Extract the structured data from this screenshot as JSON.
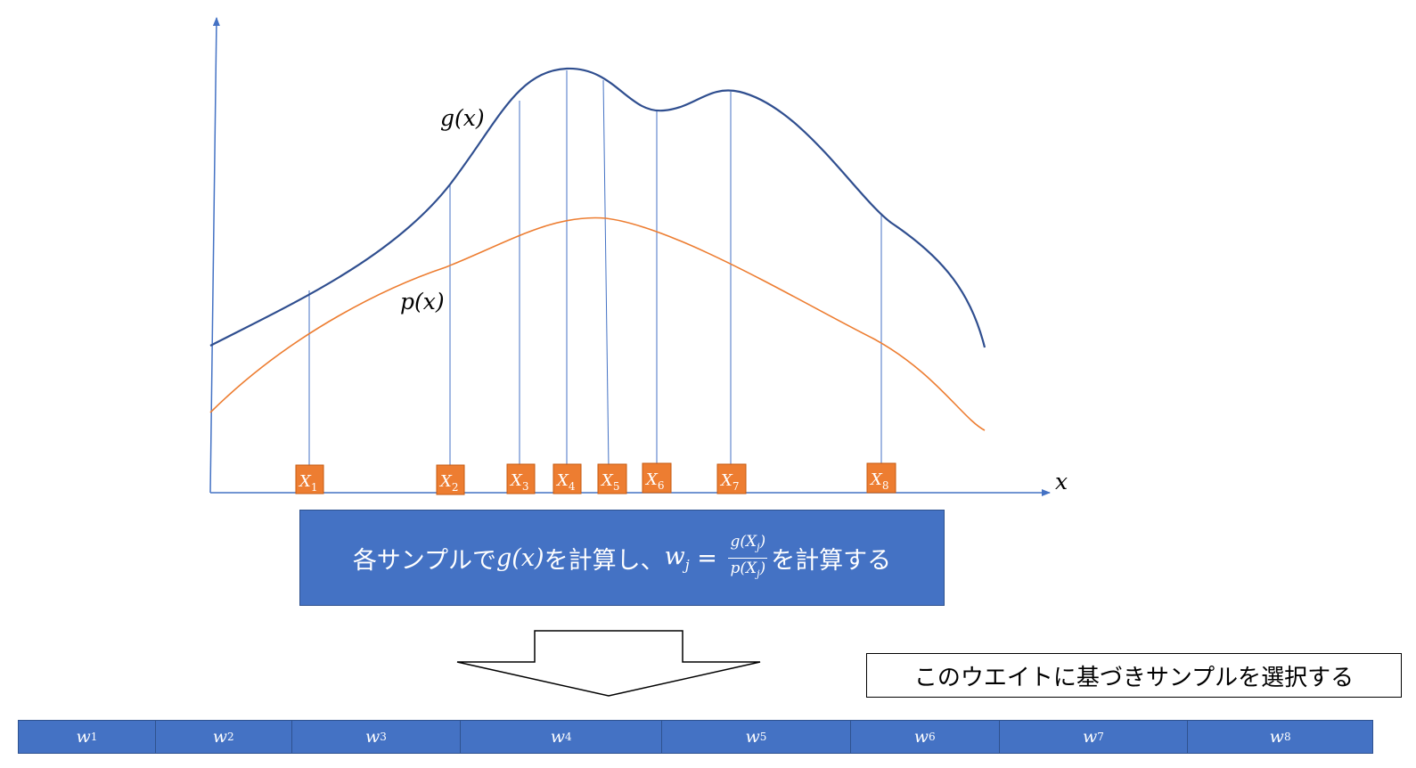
{
  "curves": {
    "g_label": "g(x)",
    "p_label": "p(x)",
    "g_color": "#2f4e8f",
    "p_color": "#ed7d31",
    "guide_color": "#4472c4"
  },
  "axes": {
    "x_label": "x",
    "axis_color": "#4472c4"
  },
  "samples": {
    "box_color": "#ed7d31",
    "items": [
      {
        "base": "X",
        "sub": "1"
      },
      {
        "base": "X",
        "sub": "2"
      },
      {
        "base": "X",
        "sub": "3"
      },
      {
        "base": "X",
        "sub": "4"
      },
      {
        "base": "X",
        "sub": "5"
      },
      {
        "base": "X",
        "sub": "6"
      },
      {
        "base": "X",
        "sub": "7"
      },
      {
        "base": "X",
        "sub": "8"
      }
    ]
  },
  "callout": {
    "prefix": "各サンプルで",
    "g_expr": "g(x)",
    "middle": "を計算し、",
    "w_var": "w",
    "w_sub": "j",
    "equals": " = ",
    "numerator": "g(X",
    "num_sub": "j",
    "num_close": ")",
    "denominator": "p(X",
    "den_sub": "j",
    "den_close": ")",
    "suffix": "を計算する",
    "bg_color": "#4472c4"
  },
  "note": {
    "text": "このウエイトに基づきサンプルを選択する"
  },
  "weights": {
    "bar_color": "#4472c4",
    "items": [
      {
        "base": "w",
        "sub": "1"
      },
      {
        "base": "w",
        "sub": "2"
      },
      {
        "base": "w",
        "sub": "3"
      },
      {
        "base": "w",
        "sub": "4"
      },
      {
        "base": "w",
        "sub": "5"
      },
      {
        "base": "w",
        "sub": "6"
      },
      {
        "base": "w",
        "sub": "7"
      },
      {
        "base": "w",
        "sub": "8"
      }
    ]
  }
}
